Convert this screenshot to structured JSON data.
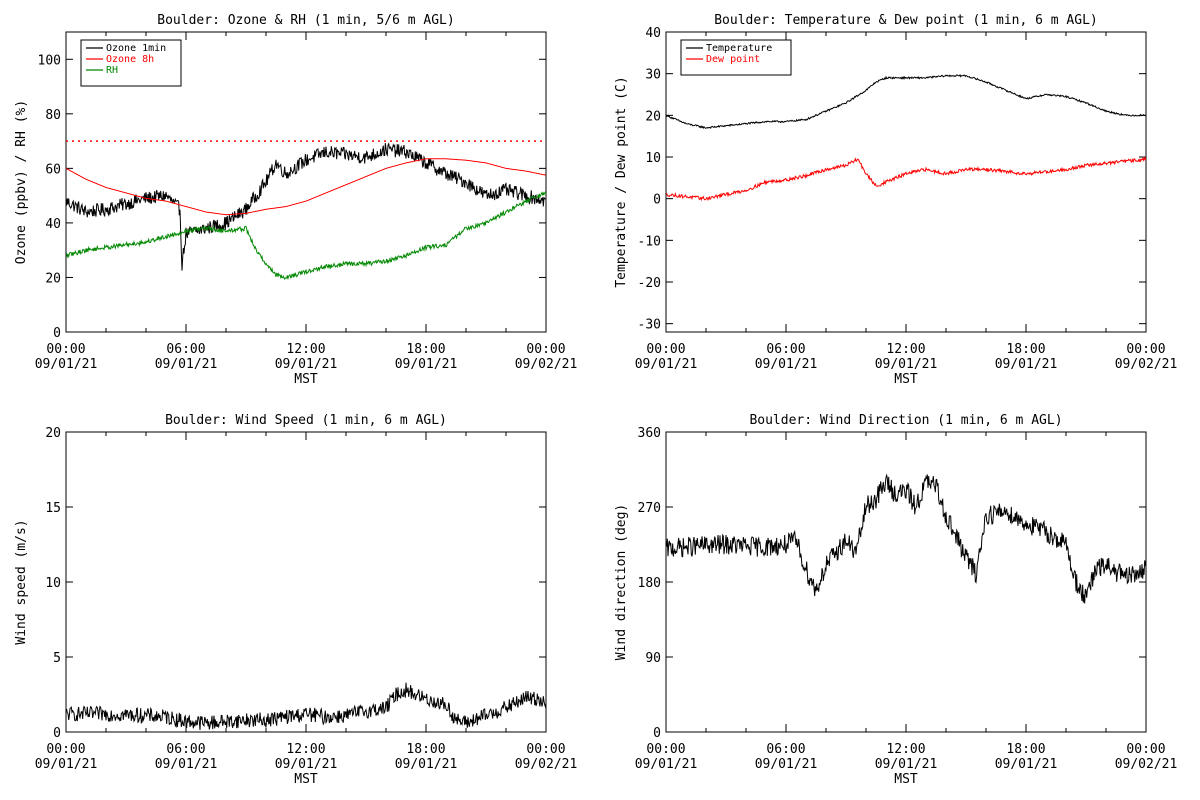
{
  "chart_data": [
    {
      "type": "line",
      "title": "Boulder: Ozone & RH (1 min, 5/6 m AGL)",
      "xlabel": "MST",
      "ylabel": "Ozone (ppbv) / RH (%)",
      "xlim": [
        0,
        24
      ],
      "ylim": [
        0,
        110
      ],
      "yticks": [
        0,
        20,
        40,
        60,
        80,
        100
      ],
      "xticks": [
        {
          "hour": 0,
          "time": "00:00",
          "date": "09/01/21"
        },
        {
          "hour": 6,
          "time": "06:00",
          "date": "09/01/21"
        },
        {
          "hour": 12,
          "time": "12:00",
          "date": "09/01/21"
        },
        {
          "hour": 18,
          "time": "18:00",
          "date": "09/01/21"
        },
        {
          "hour": 24,
          "time": "00:00",
          "date": "09/02/21"
        }
      ],
      "legend_position": "top-left",
      "reference_line": {
        "y": 70,
        "color": "#ff0000",
        "style": "dotted"
      },
      "series": [
        {
          "name": "Ozone 1min",
          "color": "#000000",
          "noise": 2.5,
          "x": [
            0,
            1,
            2,
            3,
            4,
            5,
            5.7,
            5.8,
            6,
            7,
            8,
            9,
            10,
            10.5,
            11,
            12,
            13,
            14,
            15,
            16,
            17,
            18,
            19,
            20,
            21,
            22,
            23,
            24
          ],
          "y": [
            48,
            44,
            45,
            47,
            49,
            50,
            45,
            25,
            36,
            38,
            40,
            45,
            55,
            62,
            58,
            63,
            66,
            65,
            64,
            67,
            66,
            62,
            58,
            55,
            50,
            52,
            50,
            48
          ]
        },
        {
          "name": "Ozone 8h",
          "color": "#ff0000",
          "noise": 0,
          "x": [
            0,
            1,
            2,
            3,
            4,
            5,
            6,
            7,
            8,
            9,
            10,
            11,
            12,
            13,
            14,
            15,
            16,
            17,
            18,
            19,
            20,
            21,
            22,
            23,
            24
          ],
          "y": [
            60,
            56,
            53,
            51,
            49,
            48,
            46,
            44,
            43,
            43.5,
            45,
            46,
            48,
            51,
            54,
            57,
            60,
            62,
            63.5,
            63.5,
            63,
            62,
            60,
            59,
            57.5
          ]
        },
        {
          "name": "RH",
          "color": "#008800",
          "noise": 0.8,
          "x": [
            0,
            1,
            2,
            3,
            4,
            5,
            6,
            7,
            8,
            9,
            9.5,
            10,
            10.5,
            11,
            12,
            13,
            14,
            15,
            16,
            17,
            18,
            19,
            20,
            21,
            22,
            23,
            24
          ],
          "y": [
            28,
            30,
            31,
            32,
            33,
            35,
            37,
            38,
            37,
            38,
            30,
            25,
            21,
            20,
            22,
            24,
            25,
            25,
            26,
            28,
            31,
            32,
            38,
            40,
            44,
            48,
            51
          ]
        }
      ]
    },
    {
      "type": "line",
      "title": "Boulder: Temperature & Dew point (1 min, 6 m AGL)",
      "xlabel": "MST",
      "ylabel": "Temperature / Dew point (C)",
      "xlim": [
        0,
        24
      ],
      "ylim": [
        -32,
        40
      ],
      "yticks": [
        -30,
        -20,
        -10,
        0,
        10,
        20,
        30,
        40
      ],
      "xticks": [
        {
          "hour": 0,
          "time": "00:00",
          "date": "09/01/21"
        },
        {
          "hour": 6,
          "time": "06:00",
          "date": "09/01/21"
        },
        {
          "hour": 12,
          "time": "12:00",
          "date": "09/01/21"
        },
        {
          "hour": 18,
          "time": "18:00",
          "date": "09/01/21"
        },
        {
          "hour": 24,
          "time": "00:00",
          "date": "09/02/21"
        }
      ],
      "legend_position": "top-left",
      "series": [
        {
          "name": "Temperature",
          "color": "#000000",
          "noise": 0.2,
          "x": [
            0,
            1,
            2,
            3,
            4,
            5,
            6,
            7,
            8,
            9,
            10,
            10.5,
            11,
            12,
            13,
            14,
            15,
            16,
            17,
            18,
            19,
            20,
            21,
            22,
            23,
            24
          ],
          "y": [
            20,
            18,
            17,
            17.5,
            18,
            18.5,
            18.5,
            19,
            21,
            23,
            26,
            28,
            29,
            29,
            29,
            29.5,
            29.5,
            28,
            26,
            24,
            25,
            24.5,
            23,
            21,
            20,
            20
          ]
        },
        {
          "name": "Dew point",
          "color": "#ff0000",
          "noise": 0.4,
          "x": [
            0,
            1,
            2,
            3,
            4,
            5,
            6,
            7,
            8,
            9,
            9.6,
            10,
            10.5,
            11,
            12,
            13,
            14,
            15,
            16,
            17,
            18,
            19,
            20,
            21,
            22,
            23,
            24
          ],
          "y": [
            1,
            0.5,
            0,
            1,
            2,
            4,
            4.5,
            5.5,
            7,
            8,
            9.5,
            6,
            3,
            4,
            6,
            7,
            6,
            7,
            7,
            6.5,
            6,
            6.5,
            7,
            8,
            8.5,
            9,
            9.5
          ]
        }
      ]
    },
    {
      "type": "line",
      "title": "Boulder: Wind Speed (1 min, 6 m AGL)",
      "xlabel": "MST",
      "ylabel": "Wind speed (m/s)",
      "xlim": [
        0,
        24
      ],
      "ylim": [
        0,
        20
      ],
      "yticks": [
        0,
        5,
        10,
        15,
        20
      ],
      "xticks": [
        {
          "hour": 0,
          "time": "00:00",
          "date": "09/01/21"
        },
        {
          "hour": 6,
          "time": "06:00",
          "date": "09/01/21"
        },
        {
          "hour": 12,
          "time": "12:00",
          "date": "09/01/21"
        },
        {
          "hour": 18,
          "time": "18:00",
          "date": "09/01/21"
        },
        {
          "hour": 24,
          "time": "00:00",
          "date": "09/02/21"
        }
      ],
      "series": [
        {
          "name": "",
          "color": "#000000",
          "noise": 0.5,
          "x": [
            0,
            2,
            4,
            5,
            6,
            7,
            8,
            9,
            10,
            11,
            12,
            13,
            14,
            15,
            16,
            16.5,
            17,
            18,
            19,
            19.5,
            20,
            21,
            22,
            23,
            24
          ],
          "y": [
            1.2,
            1.2,
            1.1,
            1.0,
            0.7,
            0.6,
            0.7,
            0.8,
            0.8,
            1.0,
            1.2,
            1.0,
            1.1,
            1.4,
            1.6,
            2.5,
            2.8,
            2.2,
            1.8,
            0.8,
            0.6,
            1.1,
            1.6,
            2.3,
            2.1
          ]
        }
      ]
    },
    {
      "type": "line",
      "title": "Boulder: Wind Direction (1 min, 6 m AGL)",
      "xlabel": "MST",
      "ylabel": "Wind direction (deg)",
      "xlim": [
        0,
        24
      ],
      "ylim": [
        0,
        360
      ],
      "yticks": [
        0,
        90,
        180,
        270,
        360
      ],
      "xticks": [
        {
          "hour": 0,
          "time": "00:00",
          "date": "09/01/21"
        },
        {
          "hour": 6,
          "time": "06:00",
          "date": "09/01/21"
        },
        {
          "hour": 12,
          "time": "12:00",
          "date": "09/01/21"
        },
        {
          "hour": 18,
          "time": "18:00",
          "date": "09/01/21"
        },
        {
          "hour": 24,
          "time": "00:00",
          "date": "09/02/21"
        }
      ],
      "series": [
        {
          "name": "",
          "color": "#000000",
          "noise": 12,
          "x": [
            0,
            1,
            2,
            3,
            4,
            5,
            6,
            6.5,
            7,
            7.5,
            8,
            9,
            9.5,
            10,
            10.5,
            11,
            11.5,
            12,
            12.5,
            13,
            13.5,
            14,
            15,
            15.5,
            16,
            17,
            18,
            19,
            20,
            20.5,
            21,
            21.5,
            22,
            23,
            24
          ],
          "y": [
            220,
            222,
            224,
            225,
            223,
            222,
            225,
            230,
            195,
            170,
            200,
            230,
            215,
            270,
            280,
            300,
            285,
            290,
            270,
            300,
            295,
            260,
            210,
            190,
            260,
            265,
            250,
            240,
            225,
            180,
            160,
            195,
            200,
            185,
            195
          ]
        }
      ]
    }
  ]
}
